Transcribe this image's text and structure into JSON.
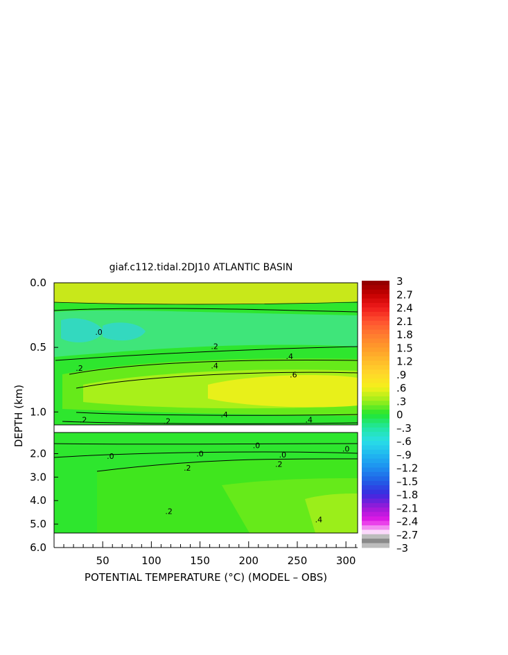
{
  "chart_data": {
    "type": "heatmap",
    "title": "giaf.c112.tidal.2DJ10 ATLANTIC BASIN",
    "xlabel": "POTENTIAL TEMPERATURE (°C) (MODEL – OBS)",
    "ylabel": "DEPTH (km)",
    "xlim": [
      0,
      312
    ],
    "x_ticks": [
      "50",
      "100",
      "150",
      "200",
      "250",
      "300"
    ],
    "x_tick_values": [
      50,
      100,
      150,
      200,
      250,
      300
    ],
    "y_ticks_upper": [
      "0.0",
      "0.5",
      "1.0"
    ],
    "y_tick_values_upper": [
      0.0,
      0.5,
      1.0
    ],
    "y_ticks_lower": [
      "2.0",
      "3.0",
      "4.0",
      "5.0",
      "6.0"
    ],
    "y_tick_values_lower": [
      2.0,
      3.0,
      4.0,
      5.0,
      6.0
    ],
    "ylim_upper": [
      0.0,
      1.1
    ],
    "ylim_lower": [
      1.1,
      6.0
    ],
    "colorbar": {
      "range": [
        -3,
        3
      ],
      "labels": [
        "3",
        "2.7",
        "2.4",
        "2.1",
        "1.8",
        "1.5",
        "1.2",
        ".9",
        ".6",
        ".3",
        "0",
        "–.3",
        "–.6",
        "–.9",
        "–1.2",
        "–1.5",
        "–1.8",
        "–2.1",
        "–2.4",
        "–2.7",
        "–3"
      ],
      "label_values": [
        3,
        2.7,
        2.4,
        2.1,
        1.8,
        1.5,
        1.2,
        0.9,
        0.6,
        0.3,
        0,
        -0.3,
        -0.6,
        -0.9,
        -1.2,
        -1.5,
        -1.8,
        -2.1,
        -2.4,
        -2.7,
        -3
      ]
    },
    "contour_labels": [
      {
        "text": ".0",
        "x": 46,
        "d": 0.38
      },
      {
        "text": ".2",
        "x": 26,
        "d": 0.66
      },
      {
        "text": ".2",
        "x": 165,
        "d": 0.49
      },
      {
        "text": ".4",
        "x": 165,
        "d": 0.64
      },
      {
        "text": ".4",
        "x": 242,
        "d": 0.57
      },
      {
        "text": ".6",
        "x": 246,
        "d": 0.71
      },
      {
        "text": ".4",
        "x": 175,
        "d": 1.02
      },
      {
        "text": ".2",
        "x": 116,
        "d": 1.07
      },
      {
        "text": ".2",
        "x": 30,
        "d": 1.06
      },
      {
        "text": ".4",
        "x": 262,
        "d": 1.06
      },
      {
        "text": ".0",
        "x": 208,
        "d": 1.65
      },
      {
        "text": ".0",
        "x": 300,
        "d": 1.8
      },
      {
        "text": ".0",
        "x": 150,
        "d": 2.0
      },
      {
        "text": ".0",
        "x": 58,
        "d": 2.1
      },
      {
        "text": ".0",
        "x": 235,
        "d": 2.05
      },
      {
        "text": ".2",
        "x": 231,
        "d": 2.45
      },
      {
        "text": ".2",
        "x": 137,
        "d": 2.6
      },
      {
        "text": ".2",
        "x": 118,
        "d": 4.45
      },
      {
        "text": ".4",
        "x": 272,
        "d": 4.8
      }
    ]
  }
}
